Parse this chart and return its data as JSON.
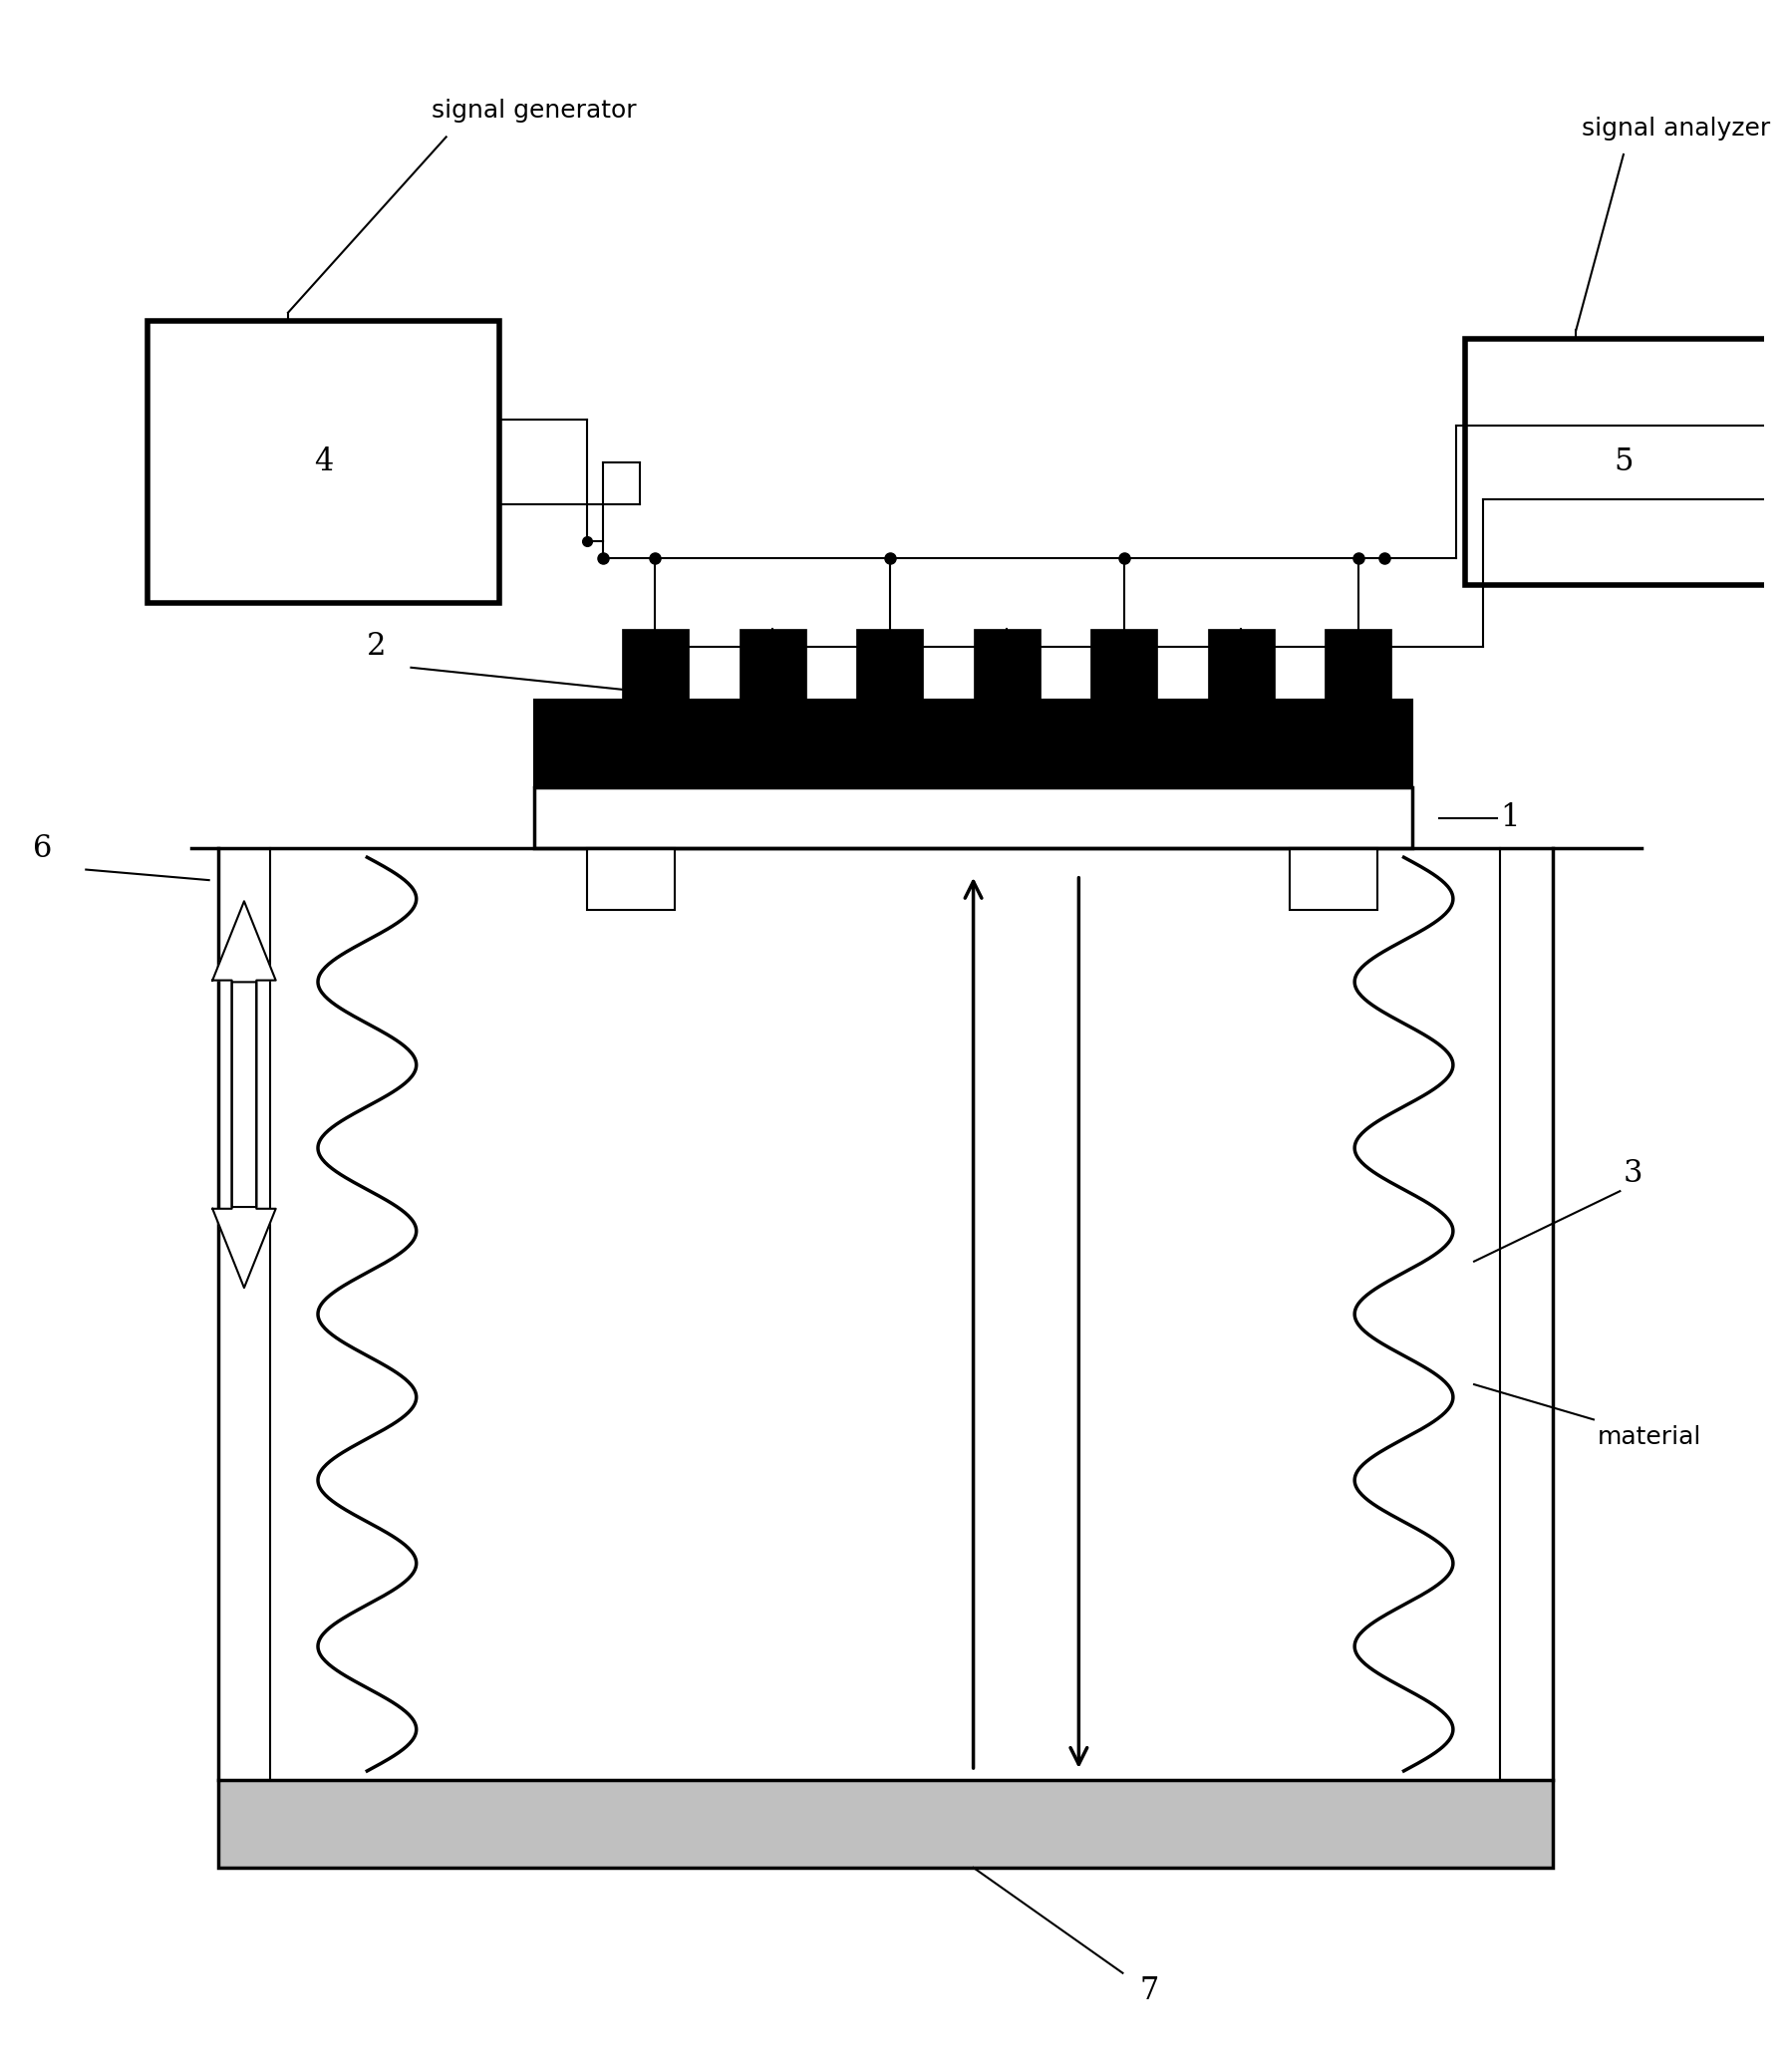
{
  "bg_color": "#ffffff",
  "lc": "#000000",
  "fig_width": 17.99,
  "fig_height": 20.73,
  "labels": {
    "signal_generator": "signal generator",
    "signal_analyzer": "signal analyzer",
    "material": "material",
    "n1": "1",
    "n2": "2",
    "n3": "3",
    "n4": "4",
    "n5": "5",
    "n6": "6",
    "n7": "7"
  },
  "font_size_label": 18,
  "font_size_number": 22
}
